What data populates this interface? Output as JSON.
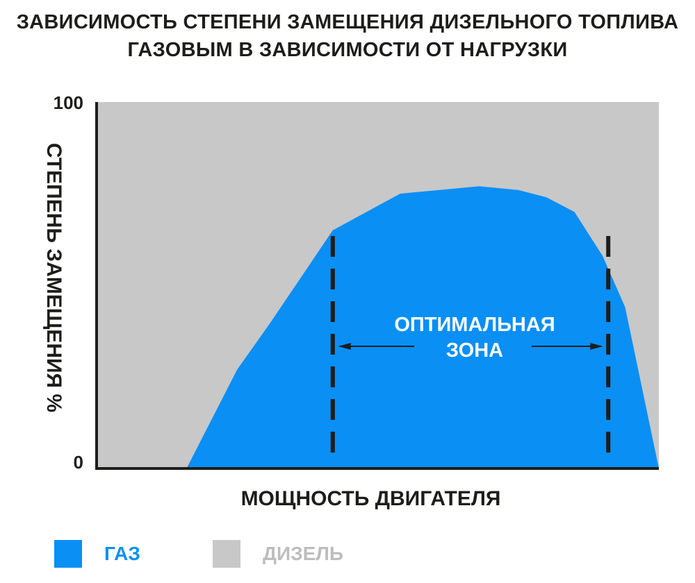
{
  "colors": {
    "gas": "#0a8ff5",
    "diesel": "#c8c8c8",
    "axis": "#1d1d1b",
    "text": "#1d1d1b",
    "legend_diesel_text": "#bdbdbd"
  },
  "title": {
    "line1": "ЗАВИСИМОСТЬ СТЕПЕНИ ЗАМЕЩЕНИЯ ДИЗЕЛЬНОГО ТОПЛИВА",
    "line2": "ГАЗОВЫМ В ЗАВИСИМОСТИ ОТ НАГРУЗКИ"
  },
  "chart_data": {
    "type": "area",
    "title": "ЗАВИСИМОСТЬ СТЕПЕНИ ЗАМЕЩЕНИЯ ДИЗЕЛЬНОГО ТОПЛИВА ГАЗОВЫМ В ЗАВИСИМОСТИ ОТ НАГРУЗКИ",
    "xlabel": "МОЩНОСТЬ ДВИГАТЕЛЯ",
    "ylabel": "СТЕПЕНЬ ЗАМЕЩЕНИЯ %",
    "y_ticks": [
      "0",
      "100"
    ],
    "ylim": [
      0,
      100
    ],
    "xlim": [
      0,
      100
    ],
    "grid": false,
    "legend_position": "bottom",
    "series": [
      {
        "name": "ГАЗ",
        "color": "#0a8ff5",
        "x": [
          0,
          16,
          25,
          31,
          42,
          54,
          68,
          75,
          80,
          85,
          90,
          94,
          100
        ],
        "y": [
          0,
          0,
          27,
          40,
          65,
          75,
          77,
          76,
          74,
          70,
          58,
          44,
          0
        ]
      },
      {
        "name": "ДИЗЕЛЬ",
        "color": "#c8c8c8",
        "y_total": 100
      }
    ],
    "annotation": {
      "line1": "ОПТИМАЛЬНАЯ",
      "line2": "ЗОНА",
      "x_start": 42,
      "x_end": 91
    }
  },
  "legend": [
    {
      "label": "ГАЗ",
      "color": "#0a8ff5",
      "text_color": "#0a8ff5"
    },
    {
      "label": "ДИЗЕЛЬ",
      "color": "#c8c8c8",
      "text_color": "#bdbdbd"
    }
  ]
}
